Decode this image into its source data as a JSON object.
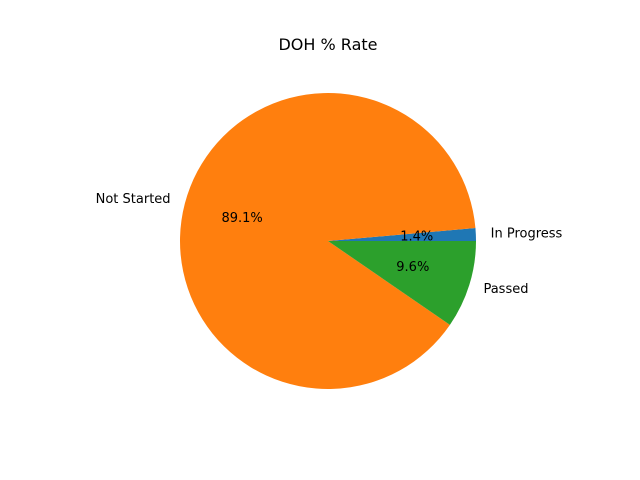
{
  "chart_data": {
    "type": "pie",
    "title": "DOH % Rate",
    "slices": [
      {
        "label": "In Progress",
        "value": 1.4,
        "pct_label": "1.4%",
        "color": "#1f77b4"
      },
      {
        "label": "Not Started",
        "value": 89.1,
        "pct_label": "89.1%",
        "color": "#ff7f0e"
      },
      {
        "label": "Passed",
        "value": 9.6,
        "pct_label": "9.6%",
        "color": "#2ca02c"
      }
    ],
    "start_angle_deg": 0,
    "direction": "counterclockwise",
    "legend": "none"
  }
}
